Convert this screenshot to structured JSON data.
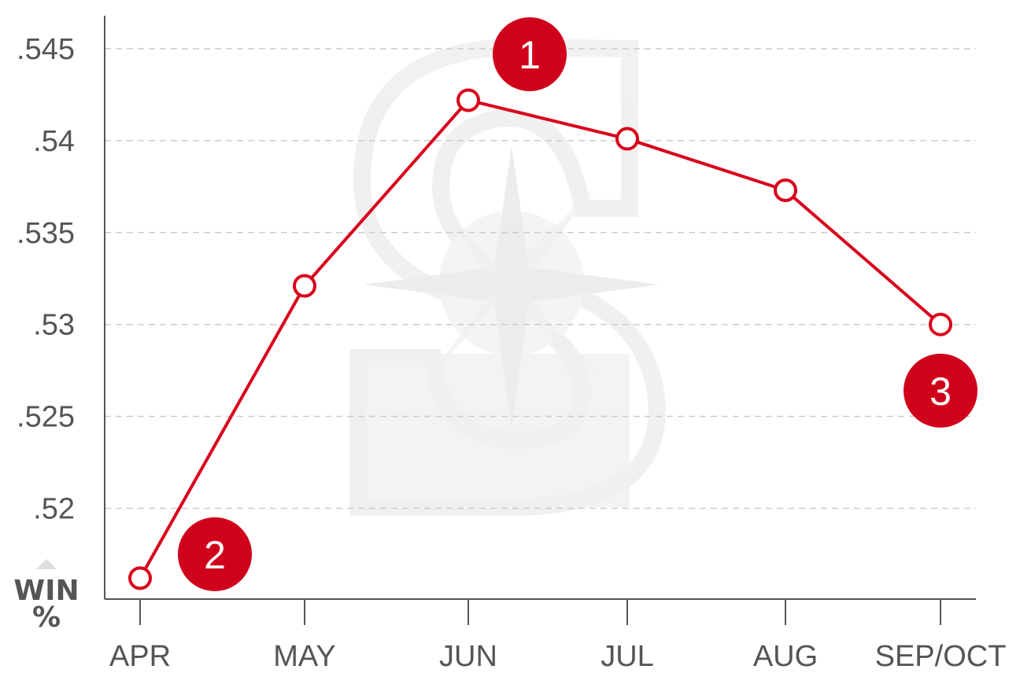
{
  "chart_data": {
    "type": "line",
    "categories": [
      "APR",
      "MAY",
      "JUN",
      "JUL",
      "AUG",
      "SEP/OCT"
    ],
    "series": [
      {
        "values": [
          0.5162,
          0.5321,
          0.5422,
          0.5401,
          0.5373,
          0.53
        ]
      }
    ],
    "ylim": [
      0.5155,
      0.5468
    ],
    "yticks": [
      ".52",
      ".525",
      ".53",
      ".535",
      ".54",
      ".545"
    ],
    "ytick_values": [
      0.52,
      0.525,
      0.53,
      0.535,
      0.54,
      0.545
    ],
    "ylabel": [
      "WIN",
      "%"
    ],
    "grid": true,
    "line_color": "#d9001b",
    "marker_fill": "#ffffff",
    "callout_color": "#d0021b",
    "callouts": [
      {
        "label": "1",
        "category_index": 2,
        "value": 0.5447
      },
      {
        "label": "2",
        "category_index": 0,
        "value": 0.5175
      },
      {
        "label": "3",
        "category_index": 5,
        "value": 0.5264
      }
    ],
    "background_logo": "seattle-mariners-compass-icon"
  }
}
